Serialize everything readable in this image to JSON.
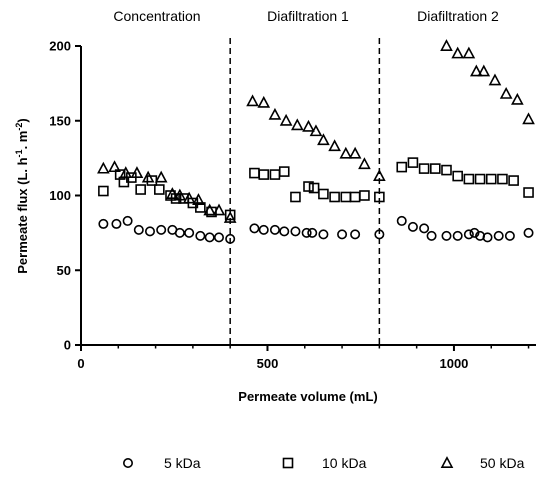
{
  "chart_data": {
    "type": "scatter",
    "xlabel": "Permeate volume (mL)",
    "ylabel_base": "Permeate flux (L. h",
    "ylabel_sup1": "-1",
    "ylabel_mid": ". m",
    "ylabel_sup2": "-2",
    "ylabel_end": ")",
    "xlim": [
      0,
      1220
    ],
    "ylim": [
      0,
      200
    ],
    "x_ticks": [
      0,
      500,
      1000
    ],
    "y_ticks": [
      0,
      50,
      100,
      150,
      200
    ],
    "phase_boundaries": [
      400,
      800
    ],
    "phase_labels": [
      "Concentration",
      "Diafiltration 1",
      "Diafiltration 2"
    ],
    "legend_placement": "bottom",
    "series": [
      {
        "name": "5 kDa",
        "marker": "circle",
        "points": [
          [
            60,
            81
          ],
          [
            95,
            81
          ],
          [
            125,
            83
          ],
          [
            155,
            77
          ],
          [
            185,
            76
          ],
          [
            215,
            77
          ],
          [
            245,
            77
          ],
          [
            265,
            75
          ],
          [
            290,
            75
          ],
          [
            320,
            73
          ],
          [
            345,
            72
          ],
          [
            370,
            72
          ],
          [
            400,
            71
          ],
          [
            465,
            78
          ],
          [
            490,
            77
          ],
          [
            520,
            77
          ],
          [
            545,
            76
          ],
          [
            575,
            76
          ],
          [
            605,
            75
          ],
          [
            620,
            75
          ],
          [
            650,
            74
          ],
          [
            700,
            74
          ],
          [
            735,
            74
          ],
          [
            800,
            74
          ],
          [
            860,
            83
          ],
          [
            890,
            79
          ],
          [
            920,
            78
          ],
          [
            940,
            73
          ],
          [
            980,
            73
          ],
          [
            1010,
            73
          ],
          [
            1040,
            74
          ],
          [
            1055,
            75
          ],
          [
            1070,
            73
          ],
          [
            1090,
            72
          ],
          [
            1120,
            73
          ],
          [
            1150,
            73
          ],
          [
            1200,
            75
          ]
        ]
      },
      {
        "name": "10 kDa",
        "marker": "square",
        "points": [
          [
            60,
            103
          ],
          [
            105,
            114
          ],
          [
            115,
            109
          ],
          [
            135,
            112
          ],
          [
            160,
            104
          ],
          [
            190,
            110
          ],
          [
            210,
            104
          ],
          [
            240,
            100
          ],
          [
            255,
            98
          ],
          [
            275,
            98
          ],
          [
            300,
            95
          ],
          [
            320,
            92
          ],
          [
            350,
            89
          ],
          [
            400,
            87
          ],
          [
            465,
            115
          ],
          [
            490,
            114
          ],
          [
            520,
            114
          ],
          [
            545,
            116
          ],
          [
            575,
            99
          ],
          [
            610,
            106
          ],
          [
            625,
            105
          ],
          [
            650,
            101
          ],
          [
            680,
            99
          ],
          [
            710,
            99
          ],
          [
            735,
            99
          ],
          [
            760,
            100
          ],
          [
            800,
            99
          ],
          [
            860,
            119
          ],
          [
            890,
            122
          ],
          [
            920,
            118
          ],
          [
            950,
            118
          ],
          [
            980,
            117
          ],
          [
            1010,
            113
          ],
          [
            1040,
            111
          ],
          [
            1070,
            111
          ],
          [
            1100,
            111
          ],
          [
            1130,
            111
          ],
          [
            1160,
            110
          ],
          [
            1200,
            102
          ]
        ]
      },
      {
        "name": "50 kDa",
        "marker": "triangle",
        "points": [
          [
            60,
            118
          ],
          [
            90,
            119
          ],
          [
            120,
            115
          ],
          [
            150,
            115
          ],
          [
            180,
            112
          ],
          [
            215,
            112
          ],
          [
            245,
            101
          ],
          [
            265,
            100
          ],
          [
            290,
            98
          ],
          [
            315,
            97
          ],
          [
            345,
            90
          ],
          [
            370,
            90
          ],
          [
            400,
            85
          ],
          [
            460,
            163
          ],
          [
            490,
            162
          ],
          [
            520,
            154
          ],
          [
            550,
            150
          ],
          [
            580,
            147
          ],
          [
            610,
            146
          ],
          [
            630,
            143
          ],
          [
            650,
            137
          ],
          [
            680,
            133
          ],
          [
            710,
            128
          ],
          [
            735,
            128
          ],
          [
            760,
            121
          ],
          [
            800,
            113
          ],
          [
            980,
            200
          ],
          [
            1010,
            195
          ],
          [
            1040,
            195
          ],
          [
            1060,
            183
          ],
          [
            1080,
            183
          ],
          [
            1110,
            177
          ],
          [
            1140,
            168
          ],
          [
            1170,
            164
          ],
          [
            1200,
            151
          ]
        ]
      }
    ]
  }
}
